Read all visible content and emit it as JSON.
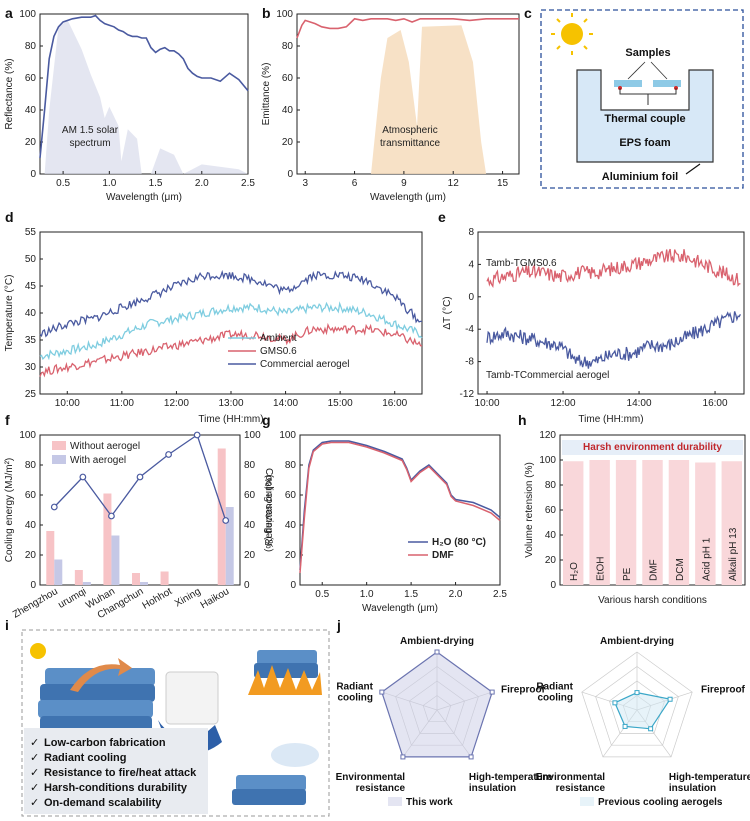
{
  "panel_labels": {
    "a": "a",
    "b": "b",
    "c": "c",
    "d": "d",
    "e": "e",
    "f": "f",
    "g": "g",
    "h": "h",
    "i": "i",
    "j": "j"
  },
  "chart_data": [
    {
      "id": "a",
      "type": "line",
      "xlabel": "Wavelength (μm)",
      "ylabel": "Reflectance (%)",
      "xlim": [
        0.25,
        2.5
      ],
      "ylim": [
        0,
        100
      ],
      "xticks": [
        "0.5",
        "1.0",
        "1.5",
        "2.0",
        "2.5"
      ],
      "yticks": [
        "0",
        "20",
        "40",
        "60",
        "80",
        "100"
      ],
      "series": [
        {
          "name": "Reflectance",
          "color": "#4a5aa0",
          "x": [
            0.25,
            0.3,
            0.35,
            0.4,
            0.45,
            0.5,
            0.6,
            0.7,
            0.8,
            0.85,
            0.9,
            0.95,
            1.0,
            1.05,
            1.1,
            1.15,
            1.2,
            1.25,
            1.3,
            1.35,
            1.4,
            1.45,
            1.5,
            1.55,
            1.6,
            1.65,
            1.7,
            1.75,
            1.8,
            1.85,
            1.9,
            1.95,
            2.0,
            2.1,
            2.2,
            2.3,
            2.4,
            2.5
          ],
          "y": [
            10,
            40,
            72,
            86,
            92,
            95,
            97,
            98,
            98,
            99,
            96,
            94,
            93,
            92,
            90,
            89,
            87,
            86,
            86,
            85,
            85,
            79,
            76,
            78,
            79,
            77,
            77,
            75,
            72,
            66,
            63,
            61,
            60,
            60,
            58,
            63,
            59,
            52
          ]
        }
      ],
      "annotation": "AM 1.5 solar\nspectrum"
    },
    {
      "id": "b",
      "type": "line",
      "xlabel": "Wavelength (μm)",
      "ylabel": "Emittance (%)",
      "xlim": [
        2.5,
        16
      ],
      "ylim": [
        0,
        100
      ],
      "xticks": [
        "3",
        "6",
        "9",
        "12",
        "15"
      ],
      "yticks": [
        "0",
        "20",
        "40",
        "60",
        "80",
        "100"
      ],
      "series": [
        {
          "name": "Emittance",
          "color": "#d9626e",
          "x": [
            2.5,
            2.8,
            3,
            3.3,
            3.6,
            4,
            4.5,
            5,
            5.5,
            5.8,
            6,
            6.5,
            7,
            7.5,
            8,
            8.5,
            9,
            9.5,
            10,
            11,
            12,
            13,
            14,
            15,
            16
          ],
          "y": [
            85,
            93,
            96,
            95,
            94,
            92,
            91,
            91,
            92,
            95,
            97,
            96,
            97,
            97,
            97,
            96,
            97,
            95,
            97,
            97,
            97,
            96,
            97,
            97,
            97
          ]
        }
      ],
      "annotation": "Atmospheric\ntransmittance"
    },
    {
      "id": "d",
      "type": "line",
      "xlabel": "Time (HH:mm)",
      "ylabel": "Temperature (°C)",
      "ylim": [
        25,
        55
      ],
      "xticks": [
        "10:00",
        "11:00",
        "12:00",
        "13:00",
        "14:00",
        "15:00",
        "16:00"
      ],
      "yticks": [
        "25",
        "30",
        "35",
        "40",
        "45",
        "50",
        "55"
      ],
      "series": [
        {
          "name": "Ambient",
          "color": "#7fcde0",
          "x": [
            0,
            0.5,
            1,
            1.5,
            2,
            2.5,
            3,
            3.5,
            4,
            4.5,
            5,
            5.5,
            6,
            6.5,
            7
          ],
          "y": [
            32,
            33,
            34,
            36,
            38,
            39,
            40,
            41,
            41,
            40,
            41,
            41,
            40,
            38,
            36
          ]
        },
        {
          "name": "GMS0.6",
          "color": "#d9626e",
          "x": [
            0,
            0.5,
            1,
            1.5,
            2,
            2.5,
            3,
            3.5,
            4,
            4.5,
            5,
            5.5,
            6,
            6.5,
            7
          ],
          "y": [
            29,
            30,
            31,
            32,
            33,
            34,
            35,
            36,
            36,
            35,
            37,
            37,
            37,
            36,
            34
          ]
        },
        {
          "name": "Commercial aerogel",
          "color": "#4a5aa0",
          "x": [
            0,
            0.5,
            1,
            1.5,
            2,
            2.5,
            3,
            3.5,
            4,
            4.5,
            5,
            5.5,
            6,
            6.5,
            7
          ],
          "y": [
            36,
            38,
            39,
            41,
            43,
            45,
            47,
            47,
            46,
            44,
            47,
            47,
            46,
            43,
            38
          ]
        }
      ]
    },
    {
      "id": "e",
      "type": "line",
      "xlabel": "Time (HH:mm)",
      "ylabel": "ΔT (°C)",
      "ylim": [
        -12,
        8
      ],
      "xticks": [
        "10:00",
        "12:00",
        "14:00",
        "16:00"
      ],
      "yticks": [
        "-12",
        "-8",
        "-4",
        "0",
        "4",
        "8"
      ],
      "series": [
        {
          "name": "Tamb-TGMS0.6",
          "color": "#d9626e",
          "x": [
            0,
            1,
            2,
            3,
            4,
            5,
            6,
            7,
            8,
            9,
            10,
            11,
            12,
            13,
            14
          ],
          "y": [
            2,
            2.5,
            3,
            3,
            2.5,
            3,
            3,
            3.5,
            4,
            4.5,
            5,
            5,
            4,
            3,
            2
          ]
        },
        {
          "name": "Tamb-TCommercial aerogel",
          "color": "#4a5aa0",
          "x": [
            0,
            1,
            2,
            3,
            4,
            5,
            6,
            7,
            8,
            9,
            10,
            11,
            12,
            13,
            14
          ],
          "y": [
            -5,
            -4.5,
            -5,
            -5.5,
            -6,
            -8,
            -8,
            -7,
            -7,
            -6,
            -6,
            -5,
            -4,
            -3,
            -2
          ]
        }
      ]
    },
    {
      "id": "f",
      "type": "bar",
      "ylabel": "Cooling energy (MJ/m²)",
      "y2label": "Cooling saving (%)",
      "ylim": [
        0,
        100
      ],
      "y2lim": [
        0,
        100
      ],
      "categories": [
        "Zhengzhou",
        "urumqi",
        "Wuhan",
        "Changchun",
        "Hohhot",
        "Xining",
        "Haikou"
      ],
      "series": [
        {
          "name": "Without aerogel",
          "color": "#f7c3c6",
          "values": [
            36,
            10,
            61,
            8,
            9,
            0,
            91
          ]
        },
        {
          "name": "With aerogel",
          "color": "#c5c8e6",
          "values": [
            17,
            2,
            33,
            2,
            0,
            0,
            52
          ]
        },
        {
          "name": "Cooling saving",
          "color": "#4a5aa0",
          "values": [
            52,
            72,
            46,
            72,
            87,
            100,
            43
          ]
        }
      ],
      "yticks": [
        "0",
        "20",
        "40",
        "60",
        "80",
        "100"
      ]
    },
    {
      "id": "g",
      "type": "line",
      "xlabel": "Wavelength (μm)",
      "ylabel": "Reflectance (%)",
      "xlim": [
        0.25,
        2.5
      ],
      "ylim": [
        0,
        100
      ],
      "xticks": [
        "0.5",
        "1.0",
        "1.5",
        "2.0",
        "2.5"
      ],
      "yticks": [
        "0",
        "20",
        "40",
        "60",
        "80",
        "100"
      ],
      "series": [
        {
          "name": "H₂O (80 °C)",
          "color": "#4a5aa0",
          "x": [
            0.25,
            0.3,
            0.35,
            0.4,
            0.5,
            0.6,
            0.8,
            1.0,
            1.2,
            1.4,
            1.45,
            1.5,
            1.6,
            1.7,
            1.8,
            1.9,
            1.95,
            2.0,
            2.2,
            2.4,
            2.5
          ],
          "y": [
            10,
            50,
            80,
            90,
            95,
            96,
            96,
            93,
            89,
            84,
            78,
            70,
            76,
            80,
            74,
            68,
            60,
            57,
            55,
            50,
            45
          ]
        },
        {
          "name": "DMF",
          "color": "#d9626e",
          "x": [
            0.25,
            0.3,
            0.35,
            0.4,
            0.5,
            0.6,
            0.8,
            1.0,
            1.2,
            1.4,
            1.45,
            1.5,
            1.6,
            1.7,
            1.8,
            1.9,
            1.95,
            2.0,
            2.2,
            2.4,
            2.5
          ],
          "y": [
            8,
            45,
            78,
            89,
            94,
            95,
            95,
            92,
            88,
            83,
            77,
            69,
            75,
            79,
            73,
            67,
            59,
            56,
            53,
            48,
            43
          ]
        }
      ]
    },
    {
      "id": "h",
      "type": "bar",
      "xlabel": "Various harsh conditions",
      "ylabel": "Volume retension (%)",
      "ylim": [
        0,
        120
      ],
      "yticks": [
        "0",
        "20",
        "40",
        "60",
        "80",
        "100",
        "120"
      ],
      "categories": [
        "H₂O",
        "EtOH",
        "PE",
        "DMF",
        "DCM",
        "Acid pH 1",
        "Alkali pH 13"
      ],
      "values": [
        99,
        100,
        100,
        100,
        100,
        98,
        99
      ],
      "banner": "Harsh environment durability"
    },
    {
      "id": "j1",
      "type": "radar",
      "axes": [
        "Ambient-drying",
        "Fireproof",
        "High-temperature insulation",
        "Environmental resistance",
        "Radiant cooling"
      ],
      "values": [
        1,
        1,
        1,
        1,
        1
      ],
      "legend": "This work"
    },
    {
      "id": "j2",
      "type": "radar",
      "axes": [
        "Ambient-drying",
        "Fireproof",
        "High-temperature insulation",
        "Environmental resistance",
        "Radiant cooling"
      ],
      "values": [
        0.3,
        0.6,
        0.4,
        0.35,
        0.4
      ],
      "legend": "Previous cooling aerogels"
    }
  ],
  "panel_c": {
    "samples": "Samples",
    "thermocouple": "Thermal couple",
    "foam": "EPS foam",
    "foil": "Aluminium foil"
  },
  "panel_i": {
    "features": [
      "Low-carbon fabrication",
      "Radiant cooling",
      "Resistance to fire/heat attack",
      "Harsh-conditions durability",
      "On-demand scalability"
    ]
  },
  "colors": {
    "blue": "#4a5aa0",
    "red": "#d9626e",
    "cyan": "#7fcde0",
    "pink": "#f7c3c6",
    "lavender": "#c5c8e6"
  }
}
